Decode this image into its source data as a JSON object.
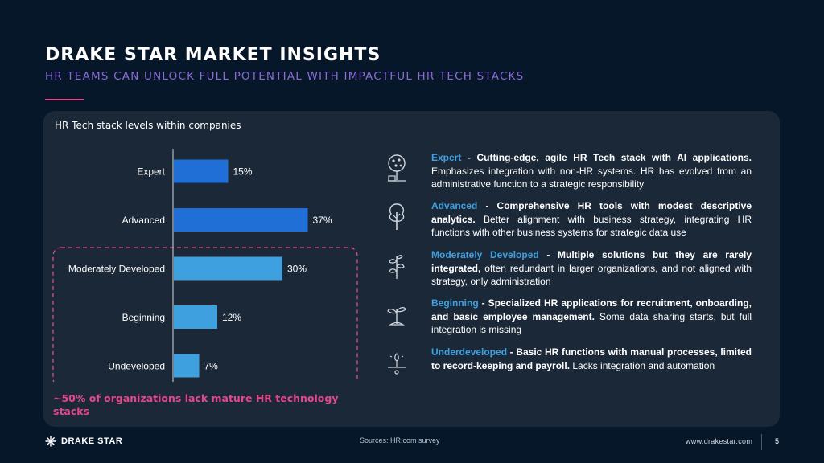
{
  "header": {
    "title": "DRAKE STAR MARKET INSIGHTS",
    "subtitle": "HR TEAMS CAN UNLOCK FULL POTENTIAL WITH IMPACTFUL HR TECH STACKS"
  },
  "chart_data": {
    "type": "bar",
    "orientation": "horizontal",
    "title": "HR Tech stack levels within companies",
    "categories": [
      "Expert",
      "Advanced",
      "Moderately Developed",
      "Beginning",
      "Undeveloped"
    ],
    "values": [
      15,
      37,
      30,
      12,
      7
    ],
    "value_labels": [
      "15%",
      "37%",
      "30%",
      "12%",
      "7%"
    ],
    "unit": "%",
    "colors": [
      "#1f6fd6",
      "#1f6fd6",
      "#3fa0e0",
      "#3fa0e0",
      "#3fa0e0"
    ],
    "grid": false,
    "highlight": {
      "categories": [
        "Moderately Developed",
        "Beginning",
        "Undeveloped"
      ],
      "color": "#e2488a",
      "style": "dashed"
    }
  },
  "callout": "~50% of organizations lack mature HR technology stacks",
  "legend": [
    {
      "icon": "tree-fruit-icon",
      "level": "Expert",
      "lead": " - Cutting-edge, agile HR Tech stack with AI applications.",
      "text": " Emphasizes integration with non-HR systems. HR has evolved from an administrative function to a strategic responsibility"
    },
    {
      "icon": "tree-icon",
      "level": "Advanced",
      "lead": " - Comprehensive HR tools with modest descriptive analytics.",
      "text": " Better alignment with business strategy, integrating HR functions with other business systems for strategic data use"
    },
    {
      "icon": "plant-icon",
      "level": "Moderately Developed",
      "lead": " - Multiple solutions but they are rarely integrated,",
      "text": " often redundant in larger organizations, and not aligned with strategy, only administration"
    },
    {
      "icon": "sprout-icon",
      "level": "Beginning",
      "lead": " - Specialized HR applications for recruitment, onboarding, and basic employee management.",
      "text": " Some data sharing starts, but full integration is missing"
    },
    {
      "icon": "seed-icon",
      "level": "Underdeveloped",
      "lead": " - Basic HR functions with manual processes, limited to record-keeping and payroll.",
      "text": " Lacks integration and automation"
    }
  ],
  "footer": {
    "logo_text": "DRAKE STAR",
    "source": "Sources: HR.com survey",
    "url": "www.drakestar.com",
    "page": "5"
  }
}
